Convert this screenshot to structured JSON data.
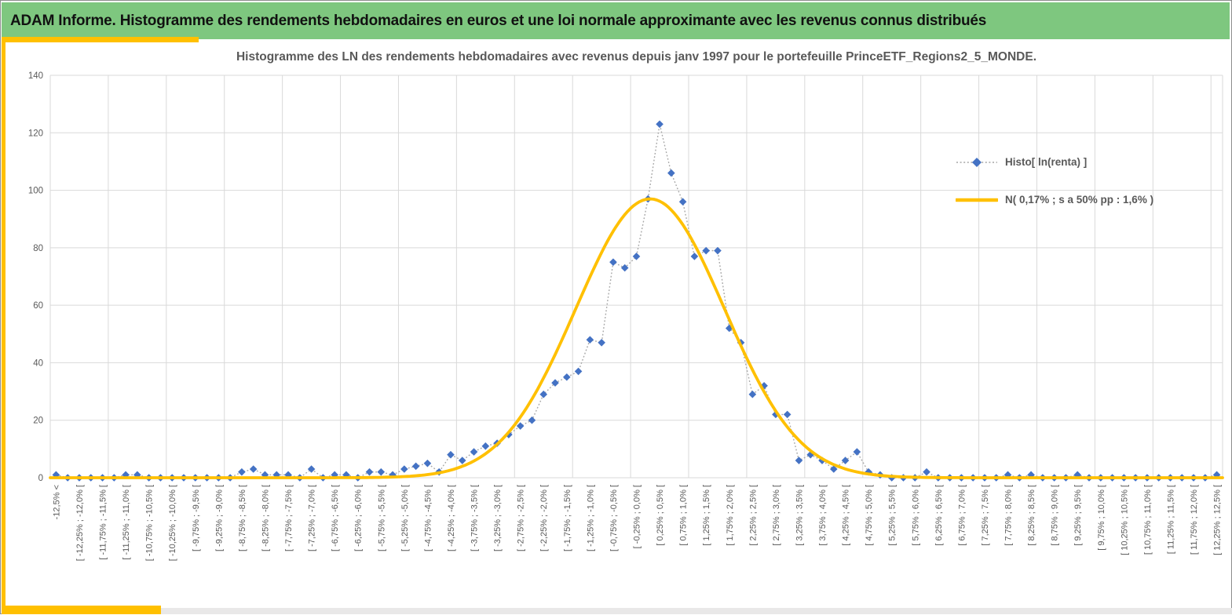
{
  "header": {
    "title": "ADAM Informe. Histogramme des rendements hebdomadaires en euros et une loi normale approximante avec les revenus connus distribués",
    "bg_color": "#7ec77f",
    "text_color": "#111111"
  },
  "accents": {
    "gold": "#ffc000",
    "bottom_strip_gray": "#e9e8e8"
  },
  "chart": {
    "title": "Histogramme des LN des rendements hebdomadaires avec revenus depuis janv 1997 pour le portefeuille PrinceETF_Regions2_5_MONDE.",
    "title_color": "#595959",
    "legend": [
      {
        "label": "Histo[ ln(renta) ]",
        "marker": "diamond-dotted",
        "color": "#4472c4"
      },
      {
        "label": "N( 0,17% ; s a 50% pp : 1,6% )",
        "marker": "line",
        "color": "#ffc000"
      }
    ]
  },
  "chart_data": {
    "type": "line",
    "title": "Histogramme des LN des rendements hebdomadaires avec revenus depuis janv 1997 pour le portefeuille PrinceETF_Regions2_5_MONDE.",
    "xlabel": "",
    "ylabel": "",
    "ylim": [
      0,
      140
    ],
    "y_ticks": [
      0,
      20,
      40,
      60,
      80,
      100,
      120,
      140
    ],
    "grid": true,
    "legend_position": "right-inside",
    "n_points": 101,
    "bin_width_pct": 0.25,
    "x_range_pct": [
      -12.5,
      12.5
    ],
    "x_label_every_n_points": 2,
    "x_labels_visible": [
      "-12,5% <",
      "[ -12,25% ; -12,0% [",
      "[ -11,75% ; -11,5% [",
      "[ -11,25% ; -11,0% [",
      "[ -10,75% ; -10,5% [",
      "[ -10,25% ; -10,0% [",
      "[ -9,75% ; -9,5% [",
      "[ -9,25% ; -9,0% [",
      "[ -8,75% ; -8,5% [",
      "[ -8,25% ; -8,0% [",
      "[ -7,75% ; -7,5% [",
      "[ -7,25% ; -7,0% [",
      "[ -6,75% ; -6,5% [",
      "[ -6,25% ; -6,0% [",
      "[ -5,75% ; -5,5% [",
      "[ -5,25% ; -5,0% [",
      "[ -4,75% ; -4,5% [",
      "[ -4,25% ; -4,0% [",
      "[ -3,75% ; -3,5% [",
      "[ -3,25% ; -3,0% [",
      "[ -2,75% ; -2,5% [",
      "[ -2,25% ; -2,0% [",
      "[ -1,75% ; -1,5% [",
      "[ -1,25% ; -1,0% [",
      "[ -0,75% ; -0,5% [",
      "[ -0,25% ; 0,0% [",
      "[ 0,25% ; 0,5% [",
      "[ 0,75% ; 1,0% [",
      "[ 1,25% ; 1,5% [",
      "[ 1,75% ; 2,0% [",
      "[ 2,25% ; 2,5% [",
      "[ 2,75% ; 3,0% [",
      "[ 3,25% ; 3,5% [",
      "[ 3,75% ; 4,0% [",
      "[ 4,25% ; 4,5% [",
      "[ 4,75% ; 5,0% [",
      "[ 5,25% ; 5,5% [",
      "[ 5,75% ; 6,0% [",
      "[ 6,25% ; 6,5% [",
      "[ 6,75% ; 7,0% [",
      "[ 7,25% ; 7,5% [",
      "[ 7,75% ; 8,0% [",
      "[ 8,25% ; 8,5% [",
      "[ 8,75% ; 9,0% [",
      "[ 9,25% ; 9,5% [",
      "[ 9,75% ; 10,0% [",
      "[ 10,25% ; 10,5% [",
      "[ 10,75% ; 11,0% [",
      "[ 11,25% ; 11,5% [",
      "[ 11,75% ; 12,0% [",
      "[ 12,25% ; 12,5% ["
    ],
    "series": [
      {
        "name": "Histo[ ln(renta) ]",
        "style": "diamond-markers-dotted-line",
        "marker_color": "#4472c4",
        "line_color": "#a6a6a6",
        "values": [
          1,
          0,
          0,
          0,
          0,
          0,
          1,
          1,
          0,
          0,
          0,
          0,
          0,
          0,
          0,
          0,
          2,
          3,
          1,
          1,
          1,
          0,
          3,
          0,
          1,
          1,
          0,
          2,
          2,
          1,
          3,
          4,
          5,
          2,
          8,
          6,
          9,
          11,
          12,
          15,
          18,
          20,
          29,
          33,
          35,
          37,
          48,
          47,
          75,
          73,
          77,
          97,
          123,
          106,
          96,
          77,
          79,
          79,
          52,
          47,
          29,
          32,
          22,
          22,
          6,
          8,
          6,
          3,
          6,
          9,
          2,
          1,
          0,
          0,
          0,
          2,
          0,
          0,
          0,
          0,
          0,
          0,
          1,
          0,
          1,
          0,
          0,
          0,
          1,
          0,
          0,
          0,
          0,
          0,
          0,
          0,
          0,
          0,
          0,
          0,
          1
        ]
      },
      {
        "name": "N( 0,17% ; s a 50% pp : 1,6% )",
        "style": "smooth-line",
        "line_color": "#ffc000",
        "normal": {
          "mean_pct": 0.17,
          "sd_pct": 1.6,
          "peak_y": 97
        }
      }
    ],
    "colors": {
      "gridline": "#d9d9d9",
      "axis_text": "#595959"
    }
  }
}
